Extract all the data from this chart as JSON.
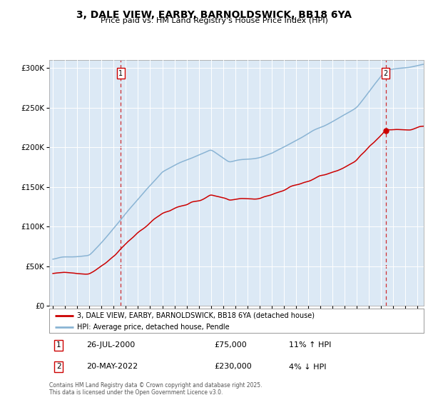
{
  "title": "3, DALE VIEW, EARBY, BARNOLDSWICK, BB18 6YA",
  "subtitle": "Price paid vs. HM Land Registry's House Price Index (HPI)",
  "legend_line1": "3, DALE VIEW, EARBY, BARNOLDSWICK, BB18 6YA (detached house)",
  "legend_line2": "HPI: Average price, detached house, Pendle",
  "annotation1_label": "1",
  "annotation1_date": "26-JUL-2000",
  "annotation1_price": "£75,000",
  "annotation1_hpi": "11% ↑ HPI",
  "annotation1_year": 2000.57,
  "annotation1_value": 75000,
  "annotation2_label": "2",
  "annotation2_date": "20-MAY-2022",
  "annotation2_price": "£230,000",
  "annotation2_hpi": "4% ↓ HPI",
  "annotation2_year": 2022.38,
  "annotation2_value": 230000,
  "hpi_color": "#8ab4d4",
  "price_color": "#cc0000",
  "vline_color": "#cc0000",
  "chart_bg_color": "#dce9f5",
  "background_color": "#ffffff",
  "grid_color": "#ffffff",
  "ylim": [
    0,
    310000
  ],
  "xlim_start": 1994.7,
  "xlim_end": 2025.5,
  "footer": "Contains HM Land Registry data © Crown copyright and database right 2025.\nThis data is licensed under the Open Government Licence v3.0."
}
